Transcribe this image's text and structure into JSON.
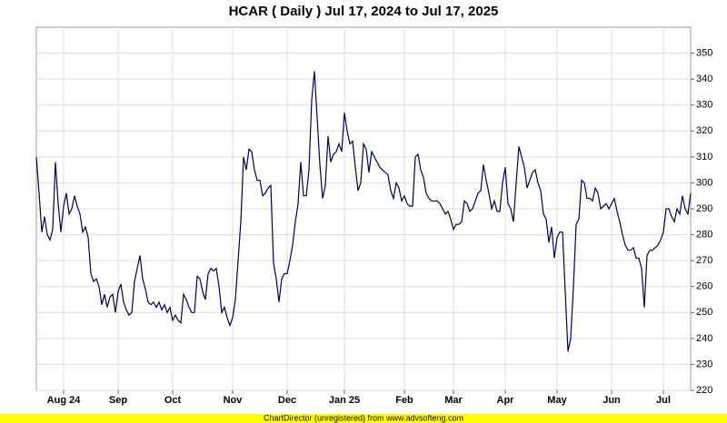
{
  "chart_data": {
    "type": "line",
    "title": "HCAR ( Daily ) Jul 17, 2024 to Jul 17, 2025",
    "footer": "ChartDirector (unregistered) from www.advsofteng.com",
    "color": "#000050",
    "grid": true,
    "xlim": [
      0,
      240
    ],
    "ylim": [
      220,
      360
    ],
    "yticks": [
      220,
      230,
      240,
      250,
      260,
      270,
      280,
      290,
      300,
      310,
      320,
      330,
      340,
      350
    ],
    "xticks": [
      {
        "value": 10,
        "label": "Aug 24"
      },
      {
        "value": 30,
        "label": "Sep"
      },
      {
        "value": 50,
        "label": "Oct"
      },
      {
        "value": 72,
        "label": "Nov"
      },
      {
        "value": 92,
        "label": "Dec"
      },
      {
        "value": 113,
        "label": "Jan 25"
      },
      {
        "value": 135,
        "label": "Feb"
      },
      {
        "value": 153,
        "label": "Mar"
      },
      {
        "value": 172,
        "label": "Apr"
      },
      {
        "value": 191,
        "label": "May"
      },
      {
        "value": 211,
        "label": "Jun"
      },
      {
        "value": 230,
        "label": "Jul"
      }
    ],
    "x": [
      0,
      1,
      2,
      3,
      4,
      5,
      6,
      7,
      8,
      9,
      10,
      11,
      12,
      13,
      14,
      15,
      16,
      17,
      18,
      19,
      20,
      21,
      22,
      23,
      24,
      25,
      26,
      27,
      28,
      29,
      30,
      31,
      32,
      33,
      34,
      35,
      36,
      37,
      38,
      39,
      40,
      41,
      42,
      43,
      44,
      45,
      46,
      47,
      48,
      49,
      50,
      51,
      52,
      53,
      54,
      55,
      56,
      57,
      58,
      59,
      60,
      61,
      62,
      63,
      64,
      65,
      66,
      67,
      68,
      69,
      70,
      71,
      72,
      73,
      74,
      75,
      76,
      77,
      78,
      79,
      80,
      81,
      82,
      83,
      84,
      85,
      86,
      87,
      88,
      89,
      90,
      91,
      92,
      93,
      94,
      95,
      96,
      97,
      98,
      99,
      100,
      101,
      102,
      103,
      104,
      105,
      106,
      107,
      108,
      109,
      110,
      111,
      112,
      113,
      114,
      115,
      116,
      117,
      118,
      119,
      120,
      121,
      122,
      123,
      124,
      125,
      126,
      127,
      128,
      129,
      130,
      131,
      132,
      133,
      134,
      135,
      136,
      137,
      138,
      139,
      140,
      141,
      142,
      143,
      144,
      145,
      146,
      147,
      148,
      149,
      150,
      151,
      152,
      153,
      154,
      155,
      156,
      157,
      158,
      159,
      160,
      161,
      162,
      163,
      164,
      165,
      166,
      167,
      168,
      169,
      170,
      171,
      172,
      173,
      174,
      175,
      176,
      177,
      178,
      179,
      180,
      181,
      182,
      183,
      184,
      185,
      186,
      187,
      188,
      189,
      190,
      191,
      192,
      193,
      194,
      195,
      196,
      197,
      198,
      199,
      200,
      201,
      202,
      203,
      204,
      205,
      206,
      207,
      208,
      209,
      210,
      211,
      212,
      213,
      214,
      215,
      216,
      217,
      218,
      219,
      220,
      221,
      222,
      223,
      224,
      225,
      226,
      227,
      228,
      229,
      230,
      231,
      232,
      233,
      234,
      235,
      236,
      237,
      238,
      239,
      240
    ],
    "values": [
      310,
      296,
      281,
      287,
      280,
      278,
      282,
      308,
      292,
      281,
      291,
      296,
      288,
      290,
      295,
      291,
      288,
      281,
      283,
      279,
      265,
      262,
      263,
      260,
      253,
      257,
      252,
      256,
      257,
      250,
      258,
      261,
      254,
      251,
      249,
      250,
      262,
      267,
      272,
      263,
      259,
      254,
      253,
      254,
      252,
      254,
      251,
      253,
      250,
      252,
      247,
      249,
      247,
      246,
      257,
      255,
      252,
      250,
      250,
      264,
      263,
      258,
      255,
      265,
      267,
      266,
      267,
      260,
      250,
      252,
      248,
      245,
      248,
      255,
      270,
      285,
      310,
      305,
      313,
      312,
      305,
      301,
      301,
      295,
      296,
      298,
      299,
      269,
      263,
      254,
      263,
      265,
      265,
      270,
      276,
      285,
      292,
      308,
      295,
      295,
      305,
      332,
      343,
      325,
      307,
      294,
      299,
      318,
      308,
      311,
      312,
      315,
      312,
      327,
      320,
      315,
      316,
      306,
      297,
      300,
      315,
      313,
      304,
      312,
      310,
      308,
      306,
      305,
      304,
      303,
      297,
      294,
      300,
      298,
      293,
      295,
      292,
      291,
      291,
      310,
      311,
      305,
      302,
      296,
      294,
      293,
      293,
      293,
      292,
      290,
      288,
      289,
      286,
      282,
      284,
      284,
      285,
      293,
      292,
      289,
      290,
      293,
      296,
      297,
      307,
      301,
      296,
      290,
      293,
      289,
      289,
      300,
      306,
      292,
      290,
      285,
      300,
      314,
      310,
      306,
      298,
      301,
      304,
      305,
      300,
      297,
      288,
      286,
      277,
      283,
      271,
      279,
      281,
      281,
      258,
      235,
      240,
      260,
      284,
      286,
      301,
      300,
      294,
      294,
      293,
      298,
      296,
      290,
      291,
      292,
      290,
      292,
      294,
      289,
      285,
      280,
      276,
      274,
      274,
      275,
      271,
      271,
      267,
      252,
      272,
      274,
      274,
      275,
      276,
      278,
      281,
      290,
      290,
      287,
      285,
      290,
      288,
      295,
      290,
      288,
      296
    ]
  }
}
